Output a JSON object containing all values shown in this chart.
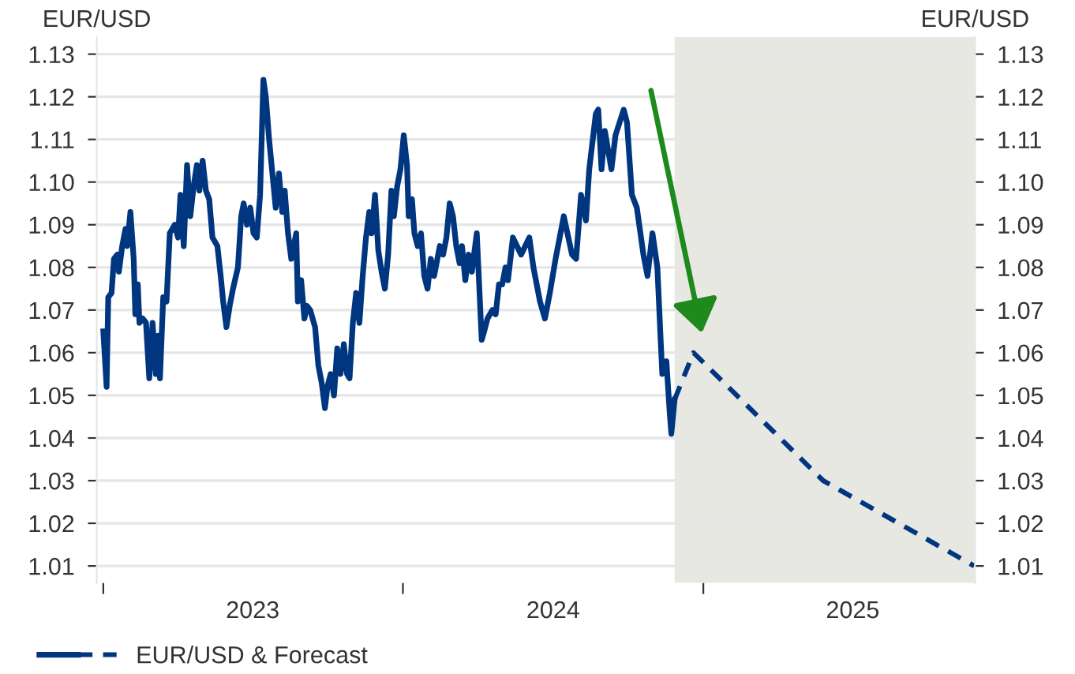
{
  "chart_data": {
    "type": "line",
    "ylabel": "EUR/USD",
    "y2label": "EUR/USD",
    "xlim": [
      "2022-12-24",
      "2025-11-28"
    ],
    "xticks": [
      {
        "value": "2023-01-01",
        "label": null
      },
      {
        "value": "2023-07-02",
        "label": "2023"
      },
      {
        "value": "2024-01-01",
        "label": null
      },
      {
        "value": "2024-07-02",
        "label": "2024"
      },
      {
        "value": "2025-01-01",
        "label": null
      },
      {
        "value": "2025-07-02",
        "label": "2025"
      }
    ],
    "ylim": [
      1.006,
      1.134
    ],
    "yticks": [
      1.01,
      1.02,
      1.03,
      1.04,
      1.05,
      1.06,
      1.07,
      1.08,
      1.09,
      {
        "value": 1.1,
        "label": "1.10"
      },
      1.11,
      1.12,
      1.13
    ],
    "y2lim": [
      1.006,
      1.134
    ],
    "y2ticks": [
      1.01,
      1.02,
      1.03,
      1.04,
      1.05,
      1.06,
      1.07,
      1.08,
      1.09,
      {
        "value": 1.1,
        "label": "1.10"
      },
      1.11,
      1.12,
      1.13
    ],
    "grid": "y",
    "legend": "bottom left",
    "bands": [
      {
        "axis": "x",
        "from": "2024-11-27",
        "to": "2025-11-28",
        "color": "#e8e8e3"
      }
    ],
    "series": [
      {
        "name": "EUR/USD & Forecast",
        "color": "#003580",
        "line_style": "solid",
        "x": [
          "2023-01-01",
          "2023-01-05",
          "2023-01-07",
          "2023-01-11",
          "2023-01-14",
          "2023-01-18",
          "2023-01-20",
          "2023-01-24",
          "2023-01-28",
          "2023-01-30",
          "2023-02-03",
          "2023-02-07",
          "2023-02-09",
          "2023-02-12",
          "2023-02-14",
          "2023-02-18",
          "2023-02-22",
          "2023-02-26",
          "2023-03-02",
          "2023-03-06",
          "2023-03-09",
          "2023-03-11",
          "2023-03-15",
          "2023-03-19",
          "2023-03-23",
          "2023-03-29",
          "2023-04-02",
          "2023-04-05",
          "2023-04-09",
          "2023-04-13",
          "2023-04-17",
          "2023-04-21",
          "2023-04-25",
          "2023-04-28",
          "2023-05-02",
          "2023-05-06",
          "2023-05-10",
          "2023-05-14",
          "2023-05-20",
          "2023-05-24",
          "2023-05-27",
          "2023-05-31",
          "2023-06-04",
          "2023-06-08",
          "2023-06-14",
          "2023-06-18",
          "2023-06-21",
          "2023-06-25",
          "2023-06-29",
          "2023-07-03",
          "2023-07-07",
          "2023-07-11",
          "2023-07-15",
          "2023-07-18",
          "2023-07-22",
          "2023-07-26",
          "2023-07-30",
          "2023-08-03",
          "2023-08-07",
          "2023-08-10",
          "2023-08-14",
          "2023-08-18",
          "2023-08-24",
          "2023-08-26",
          "2023-08-30",
          "2023-09-03",
          "2023-09-06",
          "2023-09-10",
          "2023-09-16",
          "2023-09-20",
          "2023-09-24",
          "2023-09-28",
          "2023-10-01",
          "2023-10-05",
          "2023-10-09",
          "2023-10-13",
          "2023-10-17",
          "2023-10-21",
          "2023-10-25",
          "2023-10-28",
          "2023-11-01",
          "2023-11-05",
          "2023-11-09",
          "2023-11-13",
          "2023-11-17",
          "2023-11-21",
          "2023-11-24",
          "2023-11-28",
          "2023-12-02",
          "2023-12-06",
          "2023-12-10",
          "2023-12-14",
          "2023-12-18",
          "2023-12-21",
          "2023-12-25",
          "2023-12-29",
          "2024-01-02",
          "2024-01-06",
          "2024-01-08",
          "2024-01-12",
          "2024-01-15",
          "2024-01-19",
          "2024-01-23",
          "2024-01-27",
          "2024-01-31",
          "2024-02-04",
          "2024-02-08",
          "2024-02-12",
          "2024-02-15",
          "2024-02-19",
          "2024-02-23",
          "2024-02-27",
          "2024-03-02",
          "2024-03-06",
          "2024-03-10",
          "2024-03-13",
          "2024-03-17",
          "2024-03-21",
          "2024-03-25",
          "2024-03-31",
          "2024-04-06",
          "2024-04-09",
          "2024-04-13",
          "2024-04-19",
          "2024-04-23",
          "2024-04-27",
          "2024-05-01",
          "2024-05-05",
          "2024-05-08",
          "2024-05-14",
          "2024-05-24",
          "2024-06-03",
          "2024-06-08",
          "2024-06-16",
          "2024-06-22",
          "2024-06-28",
          "2024-07-05",
          "2024-07-15",
          "2024-07-25",
          "2024-07-30",
          "2024-08-05",
          "2024-08-11",
          "2024-08-15",
          "2024-08-23",
          "2024-08-26",
          "2024-08-30",
          "2024-09-03",
          "2024-09-11",
          "2024-09-16",
          "2024-09-26",
          "2024-09-30",
          "2024-10-06",
          "2024-10-12",
          "2024-10-20",
          "2024-10-25",
          "2024-10-31",
          "2024-11-06",
          "2024-11-10",
          "2024-11-12",
          "2024-11-17",
          "2024-11-21",
          "2024-11-23",
          "2024-11-27"
        ],
        "values": [
          1.065,
          1.052,
          1.073,
          1.074,
          1.082,
          1.083,
          1.079,
          1.085,
          1.089,
          1.085,
          1.093,
          1.082,
          1.069,
          1.076,
          1.067,
          1.068,
          1.067,
          1.054,
          1.067,
          1.055,
          1.064,
          1.054,
          1.073,
          1.072,
          1.088,
          1.09,
          1.087,
          1.097,
          1.085,
          1.104,
          1.092,
          1.099,
          1.104,
          1.098,
          1.105,
          1.098,
          1.096,
          1.087,
          1.085,
          1.078,
          1.072,
          1.066,
          1.071,
          1.075,
          1.08,
          1.092,
          1.095,
          1.09,
          1.094,
          1.088,
          1.087,
          1.097,
          1.124,
          1.12,
          1.11,
          1.102,
          1.094,
          1.102,
          1.093,
          1.098,
          1.088,
          1.082,
          1.088,
          1.072,
          1.077,
          1.068,
          1.071,
          1.07,
          1.066,
          1.057,
          1.053,
          1.047,
          1.052,
          1.055,
          1.05,
          1.061,
          1.055,
          1.062,
          1.055,
          1.054,
          1.067,
          1.074,
          1.067,
          1.078,
          1.087,
          1.093,
          1.088,
          1.097,
          1.084,
          1.079,
          1.075,
          1.083,
          1.098,
          1.092,
          1.099,
          1.103,
          1.111,
          1.104,
          1.092,
          1.096,
          1.088,
          1.085,
          1.088,
          1.078,
          1.075,
          1.082,
          1.078,
          1.082,
          1.085,
          1.083,
          1.087,
          1.095,
          1.092,
          1.085,
          1.081,
          1.085,
          1.077,
          1.083,
          1.079,
          1.088,
          1.063,
          1.065,
          1.068,
          1.07,
          1.069,
          1.076,
          1.076,
          1.08,
          1.077,
          1.087,
          1.083,
          1.087,
          1.08,
          1.072,
          1.068,
          1.074,
          1.082,
          1.092,
          1.083,
          1.082,
          1.097,
          1.091,
          1.103,
          1.116,
          1.117,
          1.103,
          1.112,
          1.103,
          1.111,
          1.117,
          1.114,
          1.097,
          1.094,
          1.083,
          1.078,
          1.088,
          1.08,
          1.063,
          1.055,
          1.058,
          1.046,
          1.041,
          1.049
        ]
      },
      {
        "color": "#003580",
        "line_style": "dashed",
        "x": [
          "2024-11-27",
          "2024-12-20",
          "2025-05-27",
          "2025-11-27"
        ],
        "values": [
          1.049,
          1.06,
          1.03,
          1.01
        ]
      }
    ]
  }
}
